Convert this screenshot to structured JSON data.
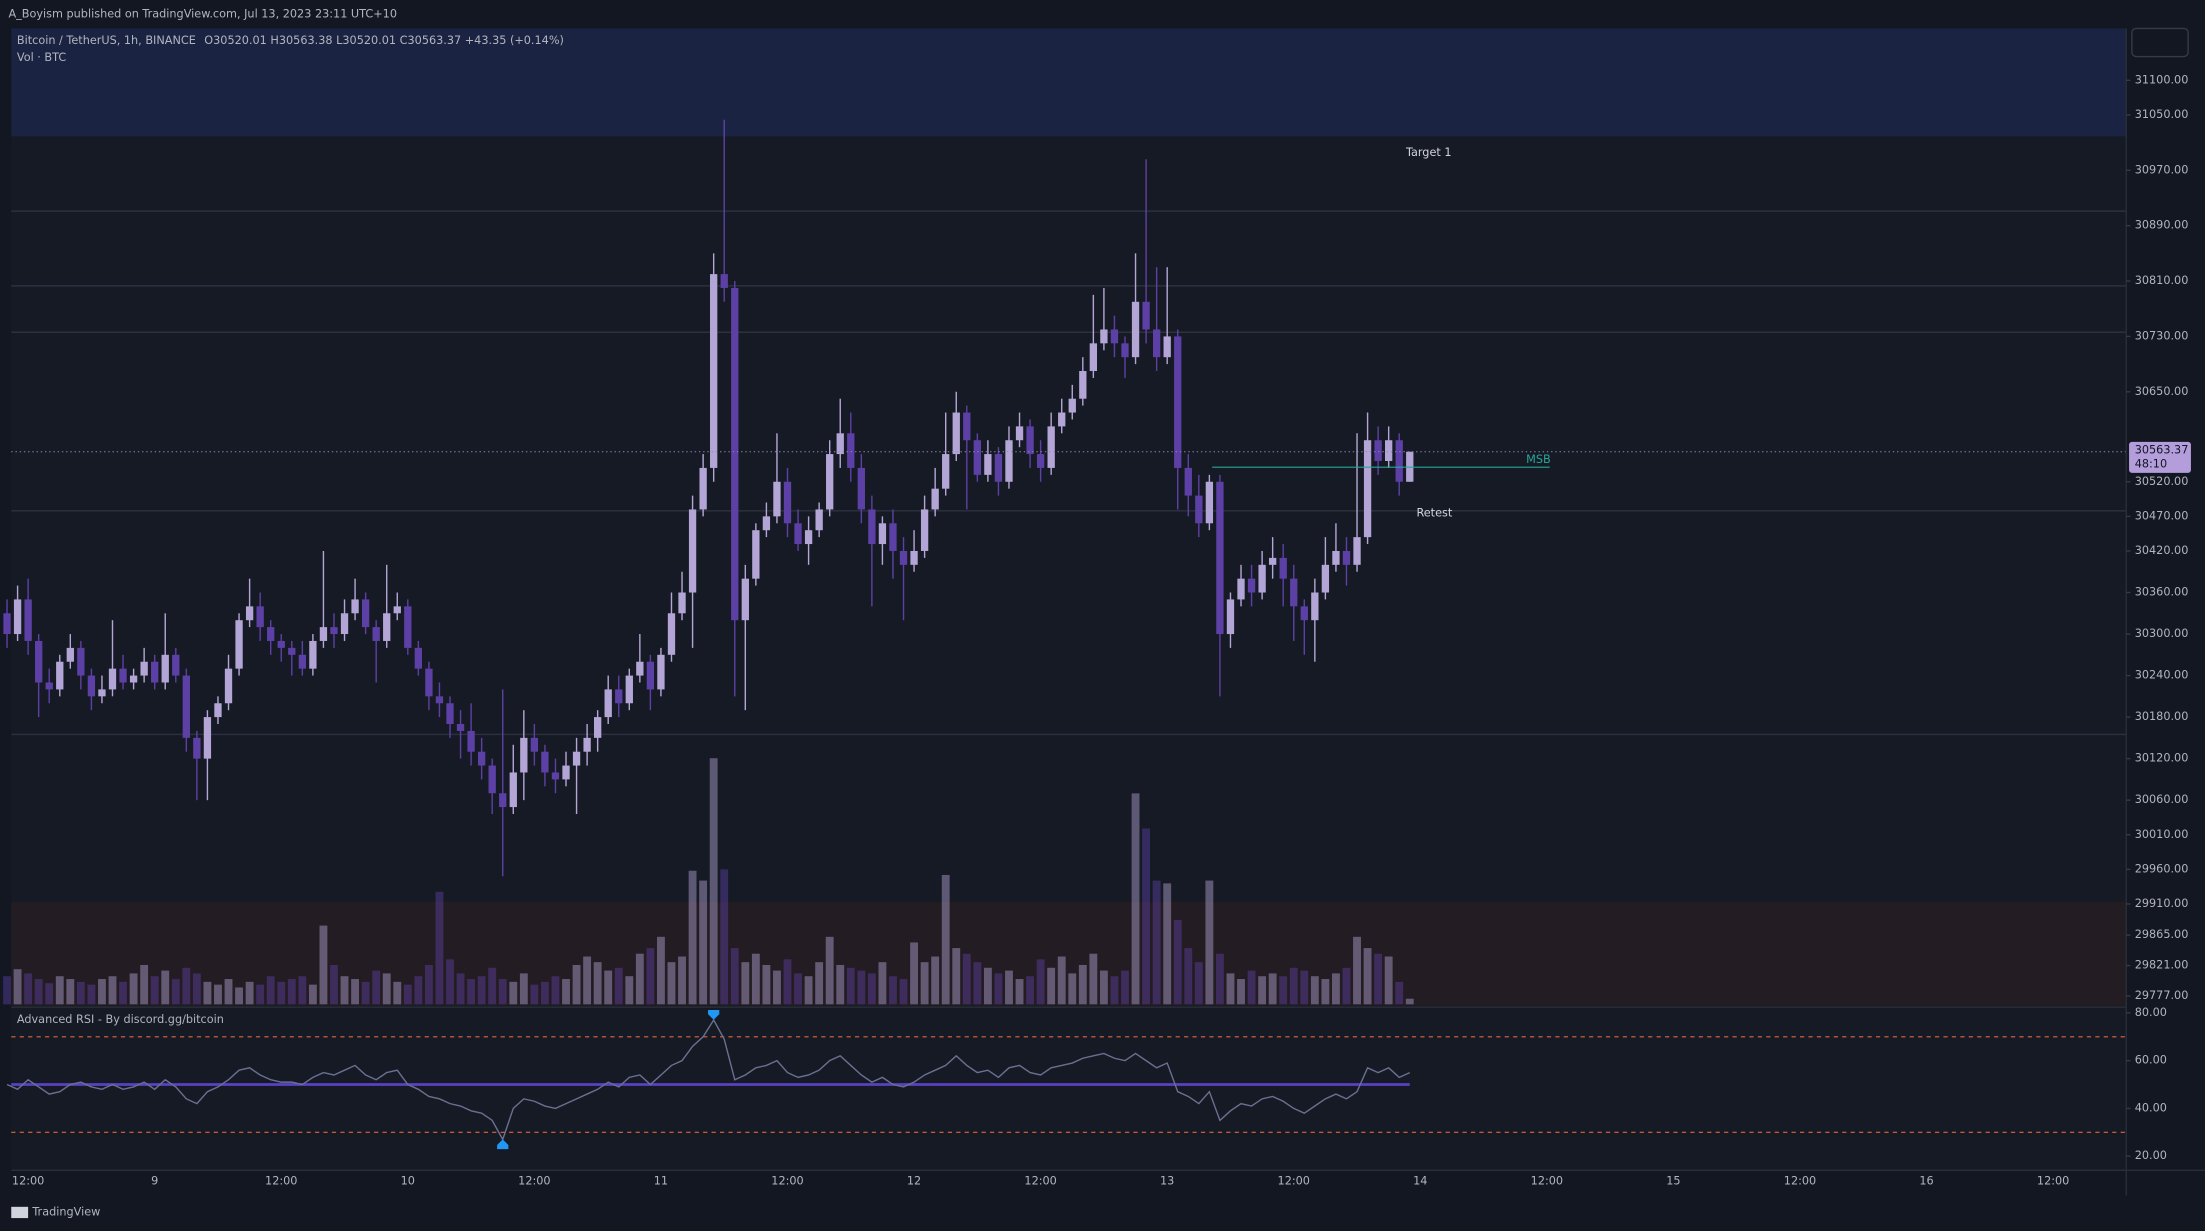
{
  "header": {
    "text": "A_Boyism published on TradingView.com, Jul 13, 2023 23:11 UTC+10"
  },
  "footer": {
    "brand": "TradingView"
  },
  "chart_data": {
    "type": "candlestick",
    "title": "Bitcoin / TetherUS, 1h, BINANCE",
    "ohlc_text": "O30520.01 H30563.38 L30520.01 C30563.37 +43.35 (+0.14%)",
    "up_color": "#b3a6d6",
    "down_color": "#5d40a5",
    "open": [
      30330,
      30300,
      30350,
      30290,
      30230,
      30220,
      30260,
      30280,
      30240,
      30210,
      30220,
      30250,
      30230,
      30240,
      30260,
      30230,
      30270,
      30240,
      30150,
      30120,
      30180,
      30200,
      30250,
      30320,
      30340,
      30310,
      30290,
      30280,
      30270,
      30250,
      30290,
      30310,
      30300,
      30330,
      30350,
      30310,
      30290,
      30330,
      30340,
      30280,
      30250,
      30210,
      30200,
      30170,
      30160,
      30130,
      30110,
      30070,
      30050,
      30100,
      30150,
      30130,
      30100,
      30090,
      30110,
      30130,
      30150,
      30180,
      30220,
      30200,
      30240,
      30260,
      30220,
      30270,
      30330,
      30360,
      30480,
      30540,
      30820,
      30800,
      30320,
      30380,
      30450,
      30470,
      30520,
      30460,
      30430,
      30450,
      30480,
      30560,
      30590,
      30540,
      30480,
      30430,
      30460,
      30420,
      30400,
      30420,
      30480,
      30510,
      30560,
      30620,
      30580,
      30530,
      30560,
      30520,
      30580,
      30600,
      30560,
      30540,
      30600,
      30620,
      30640,
      30680,
      30720,
      30740,
      30720,
      30700,
      30780,
      30740,
      30700,
      30730,
      30540,
      30500,
      30460,
      30520,
      30300,
      30350,
      30380,
      30360,
      30400,
      30410,
      30380,
      30340,
      30320,
      30360,
      30400,
      30420,
      30400,
      30440,
      30580,
      30550,
      30580,
      30520.01
    ],
    "high": [
      30350,
      30370,
      30380,
      30300,
      30250,
      30270,
      30300,
      30290,
      30250,
      30240,
      30320,
      30270,
      30250,
      30280,
      30270,
      30330,
      30280,
      30250,
      30160,
      30190,
      30210,
      30270,
      30330,
      30380,
      30360,
      30320,
      30300,
      30290,
      30290,
      30300,
      30420,
      30330,
      30350,
      30380,
      30360,
      30320,
      30400,
      30360,
      30350,
      30290,
      30260,
      30230,
      30210,
      30190,
      30200,
      30150,
      30120,
      30220,
      30140,
      30190,
      30170,
      30140,
      30120,
      30130,
      30150,
      30170,
      30190,
      30240,
      30240,
      30250,
      30300,
      30270,
      30280,
      30360,
      30390,
      30500,
      30560,
      30850,
      31043,
      30810,
      30400,
      30460,
      30490,
      30590,
      30540,
      30480,
      30470,
      30490,
      30580,
      30640,
      30620,
      30560,
      30500,
      30470,
      30480,
      30440,
      30450,
      30500,
      30540,
      30620,
      30650,
      30630,
      30590,
      30580,
      30570,
      30600,
      30620,
      30610,
      30580,
      30620,
      30640,
      30660,
      30700,
      30790,
      30800,
      30760,
      30730,
      30850,
      30986,
      30830,
      30830,
      30740,
      30560,
      30530,
      30530,
      30530,
      30360,
      30400,
      30400,
      30420,
      30440,
      30430,
      30400,
      30350,
      30380,
      30440,
      30460,
      30440,
      30590,
      30620,
      30600,
      30600,
      30590,
      30563.38
    ],
    "low": [
      30280,
      30290,
      30270,
      30180,
      30200,
      30210,
      30250,
      30220,
      30190,
      30200,
      30210,
      30220,
      30220,
      30230,
      30220,
      30220,
      30230,
      30130,
      30060,
      30060,
      30170,
      30190,
      30240,
      30310,
      30290,
      30270,
      30260,
      30240,
      30240,
      30240,
      30280,
      30280,
      30290,
      30320,
      30300,
      30230,
      30280,
      30320,
      30270,
      30240,
      30190,
      30180,
      30150,
      30120,
      30110,
      30090,
      30040,
      29950,
      30040,
      30060,
      30110,
      30080,
      30070,
      30080,
      30040,
      30110,
      30130,
      30170,
      30180,
      30190,
      30230,
      30190,
      30210,
      30260,
      30320,
      30280,
      30470,
      30520,
      30780,
      30210,
      30190,
      30370,
      30440,
      30460,
      30440,
      30420,
      30400,
      30440,
      30470,
      30540,
      30520,
      30460,
      30340,
      30400,
      30380,
      30320,
      30390,
      30410,
      30470,
      30500,
      30550,
      30480,
      30520,
      30520,
      30500,
      30510,
      30570,
      30540,
      30520,
      30530,
      30590,
      30610,
      30630,
      30670,
      30710,
      30700,
      30670,
      30690,
      30720,
      30680,
      30690,
      30480,
      30470,
      30440,
      30450,
      30210,
      30280,
      30340,
      30340,
      30350,
      30380,
      30340,
      30290,
      30270,
      30260,
      30350,
      30390,
      30370,
      30390,
      30430,
      30530,
      30540,
      30500,
      30520.01
    ],
    "close": [
      30300,
      30350,
      30290,
      30230,
      30220,
      30260,
      30280,
      30240,
      30210,
      30220,
      30250,
      30230,
      30240,
      30260,
      30230,
      30270,
      30240,
      30150,
      30120,
      30180,
      30200,
      30250,
      30320,
      30340,
      30310,
      30290,
      30280,
      30270,
      30250,
      30290,
      30310,
      30300,
      30330,
      30350,
      30310,
      30290,
      30330,
      30340,
      30280,
      30250,
      30210,
      30200,
      30170,
      30160,
      30130,
      30110,
      30070,
      30050,
      30100,
      30150,
      30130,
      30100,
      30090,
      30110,
      30130,
      30150,
      30180,
      30220,
      30200,
      30240,
      30260,
      30220,
      30270,
      30330,
      30360,
      30480,
      30540,
      30820,
      30800,
      30320,
      30380,
      30450,
      30470,
      30520,
      30460,
      30430,
      30450,
      30480,
      30560,
      30590,
      30540,
      30480,
      30430,
      30460,
      30420,
      30400,
      30420,
      30480,
      30510,
      30560,
      30620,
      30580,
      30530,
      30560,
      30520,
      30580,
      30600,
      30560,
      30540,
      30600,
      30620,
      30640,
      30680,
      30720,
      30740,
      30720,
      30700,
      30780,
      30740,
      30700,
      30730,
      30540,
      30500,
      30460,
      30520,
      30300,
      30350,
      30380,
      30360,
      30400,
      30410,
      30380,
      30340,
      30320,
      30360,
      30400,
      30420,
      30400,
      30440,
      30580,
      30550,
      30580,
      30520.01,
      30563.37
    ],
    "ylim": [
      29763,
      31175
    ],
    "yticks": [
      {
        "value": 31100,
        "label": "31100.00"
      },
      {
        "value": 31050,
        "label": "31050.00"
      },
      {
        "value": 30970,
        "label": "30970.00"
      },
      {
        "value": 30890,
        "label": "30890.00"
      },
      {
        "value": 30810,
        "label": "30810.00"
      },
      {
        "value": 30730,
        "label": "30730.00"
      },
      {
        "value": 30650,
        "label": "30650.00"
      },
      {
        "value": 30520,
        "label": "30520.00"
      },
      {
        "value": 30470,
        "label": "30470.00"
      },
      {
        "value": 30420,
        "label": "30420.00"
      },
      {
        "value": 30360,
        "label": "30360.00"
      },
      {
        "value": 30300,
        "label": "30300.00"
      },
      {
        "value": 30240,
        "label": "30240.00"
      },
      {
        "value": 30180,
        "label": "30180.00"
      },
      {
        "value": 30120,
        "label": "30120.00"
      },
      {
        "value": 30060,
        "label": "30060.00"
      },
      {
        "value": 30010,
        "label": "30010.00"
      },
      {
        "value": 29960,
        "label": "29960.00"
      },
      {
        "value": 29910,
        "label": "29910.00"
      },
      {
        "value": 29865,
        "label": "29865.00"
      },
      {
        "value": 29821,
        "label": "29821.00"
      },
      {
        "value": 29777,
        "label": "29777.00"
      }
    ],
    "x_labels": [
      "12:00",
      "9",
      "12:00",
      "10",
      "12:00",
      "11",
      "12:00",
      "12",
      "12:00",
      "13",
      "12:00",
      "14",
      "12:00",
      "15",
      "12:00",
      "16",
      "12:00"
    ],
    "last_price": {
      "value": 30563.37,
      "label": "30563.37",
      "countdown": "48:10"
    },
    "annotations": [
      {
        "text": "Target 1",
        "price": 30995
      },
      {
        "text": "Retest",
        "price": 30474
      }
    ],
    "msb": {
      "text": "MSB",
      "price": 30541
    },
    "zones": [
      {
        "from": 31019,
        "to": 31175,
        "color": "#1a2442"
      },
      {
        "from": 29763,
        "to": 29913,
        "color": "#231c22"
      }
    ],
    "levels": [
      30911,
      30803,
      30736,
      30478,
      30155
    ],
    "volume": {
      "title": "Vol · BTC",
      "values": [
        20,
        25,
        22,
        18,
        15,
        20,
        18,
        16,
        14,
        18,
        20,
        16,
        22,
        28,
        20,
        24,
        18,
        26,
        22,
        16,
        14,
        18,
        12,
        16,
        14,
        20,
        16,
        18,
        20,
        14,
        56,
        28,
        20,
        18,
        16,
        24,
        22,
        16,
        14,
        20,
        28,
        80,
        32,
        22,
        18,
        20,
        26,
        18,
        16,
        22,
        14,
        16,
        20,
        18,
        28,
        34,
        30,
        24,
        26,
        20,
        36,
        40,
        48,
        30,
        34,
        95,
        88,
        175,
        96,
        40,
        30,
        36,
        28,
        24,
        32,
        22,
        20,
        30,
        48,
        28,
        26,
        24,
        22,
        30,
        20,
        18,
        44,
        30,
        34,
        92,
        40,
        36,
        30,
        26,
        22,
        24,
        18,
        20,
        32,
        26,
        34,
        22,
        28,
        36,
        24,
        20,
        24,
        150,
        125,
        88,
        86,
        60,
        40,
        30,
        88,
        36,
        22,
        18,
        24,
        20,
        22,
        20,
        26,
        24,
        20,
        18,
        22,
        26,
        48,
        40,
        36,
        34,
        16,
        4
      ]
    },
    "rsi": {
      "title": "Advanced RSI - By discord.gg/bitcoin",
      "color": "#6a7090",
      "midline_color": "#5b3fc4",
      "band_color": "#e0663a",
      "signal_color": "#2196f3",
      "values": [
        50,
        48,
        52,
        49,
        46,
        47,
        50,
        51,
        49,
        48,
        50,
        48,
        49,
        51,
        48,
        52,
        49,
        44,
        42,
        47,
        49,
        52,
        56,
        57,
        54,
        52,
        51,
        51,
        50,
        53,
        55,
        54,
        56,
        58,
        54,
        52,
        55,
        56,
        50,
        48,
        45,
        44,
        42,
        41,
        39,
        38,
        35,
        27,
        40,
        44,
        43,
        41,
        40,
        42,
        44,
        46,
        48,
        51,
        49,
        53,
        54,
        50,
        54,
        58,
        60,
        66,
        70,
        77,
        69,
        52,
        54,
        57,
        58,
        60,
        55,
        53,
        54,
        56,
        60,
        62,
        58,
        54,
        51,
        53,
        50,
        49,
        51,
        54,
        56,
        58,
        62,
        58,
        55,
        56,
        53,
        57,
        58,
        55,
        54,
        57,
        58,
        59,
        61,
        62,
        63,
        61,
        60,
        63,
        60,
        57,
        59,
        47,
        45,
        42,
        47,
        35,
        39,
        42,
        41,
        44,
        45,
        43,
        40,
        38,
        41,
        44,
        46,
        44,
        47,
        57,
        55,
        57,
        53,
        55
      ],
      "ylim": [
        14.1,
        82.4
      ],
      "yticks": [
        {
          "value": 80,
          "label": "80.00"
        },
        {
          "value": 60,
          "label": "60.00"
        },
        {
          "value": 40,
          "label": "40.00"
        },
        {
          "value": 20,
          "label": "20.00"
        }
      ],
      "bands": [
        70,
        30
      ],
      "midline": 50
    }
  }
}
